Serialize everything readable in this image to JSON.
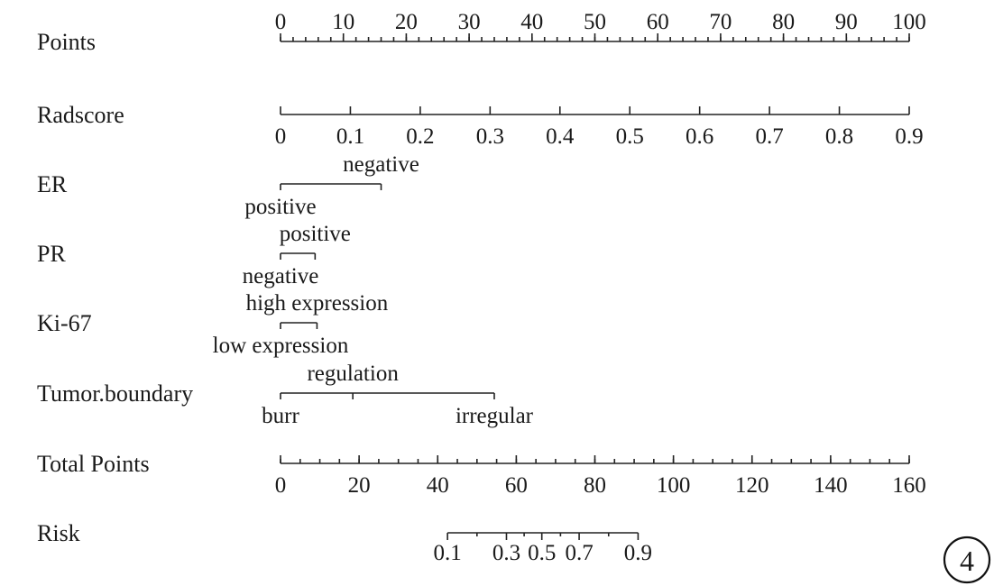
{
  "figure_number": "4",
  "chart_data": {
    "type": "nomogram",
    "rows": [
      {
        "label": "Points",
        "kind": "scale",
        "min": 0,
        "max": 100,
        "major_ticks": [
          0,
          10,
          20,
          30,
          40,
          50,
          60,
          70,
          80,
          90,
          100
        ],
        "tick_labels": [
          "0",
          "10",
          "20",
          "30",
          "40",
          "50",
          "60",
          "70",
          "80",
          "90",
          "100"
        ],
        "minor_step": 2,
        "labels_position": "above"
      },
      {
        "label": "Radscore",
        "kind": "scale",
        "min": 0,
        "max": 0.9,
        "major_ticks": [
          0,
          0.1,
          0.2,
          0.3,
          0.4,
          0.5,
          0.6,
          0.7,
          0.8,
          0.9
        ],
        "tick_labels": [
          "0",
          "0.1",
          "0.2",
          "0.3",
          "0.4",
          "0.5",
          "0.6",
          "0.7",
          "0.8",
          "0.9"
        ],
        "minor_step": 0,
        "labels_position": "below"
      },
      {
        "label": "ER",
        "kind": "categorical",
        "levels": [
          {
            "name": "positive",
            "points": 0,
            "label_position": "below"
          },
          {
            "name": "negative",
            "points": 16,
            "label_position": "above"
          }
        ]
      },
      {
        "label": "PR",
        "kind": "categorical",
        "levels": [
          {
            "name": "negative",
            "points": 0,
            "label_position": "below"
          },
          {
            "name": "positive",
            "points": 5.5,
            "label_position": "above"
          }
        ]
      },
      {
        "label": "Ki-67",
        "kind": "categorical",
        "levels": [
          {
            "name": "low expression",
            "points": 0,
            "label_position": "below"
          },
          {
            "name": "high expression",
            "points": 5.8,
            "label_position": "above"
          }
        ]
      },
      {
        "label": "Tumor.boundary",
        "kind": "categorical",
        "levels": [
          {
            "name": "burr",
            "points": 0,
            "label_position": "below"
          },
          {
            "name": "regulation",
            "points": 11.5,
            "label_position": "above"
          },
          {
            "name": "irregular",
            "points": 34,
            "label_position": "below"
          }
        ]
      },
      {
        "label": "Total Points",
        "kind": "scale",
        "min": 0,
        "max": 160,
        "major_ticks": [
          0,
          20,
          40,
          60,
          80,
          100,
          120,
          140,
          160
        ],
        "tick_labels": [
          "0",
          "20",
          "40",
          "60",
          "80",
          "100",
          "120",
          "140",
          "160"
        ],
        "minor_step": 5,
        "labels_position": "below"
      },
      {
        "label": "Risk",
        "kind": "risk",
        "total_points_at_ticks": [
          42.5,
          57.5,
          66.5,
          76.0,
          91.0
        ],
        "tick_values": [
          0.1,
          0.3,
          0.5,
          0.7,
          0.9
        ],
        "tick_labels": [
          "0.1",
          "0.3",
          "0.5",
          "0.7",
          "0.9"
        ],
        "labels_position": "below"
      }
    ]
  }
}
